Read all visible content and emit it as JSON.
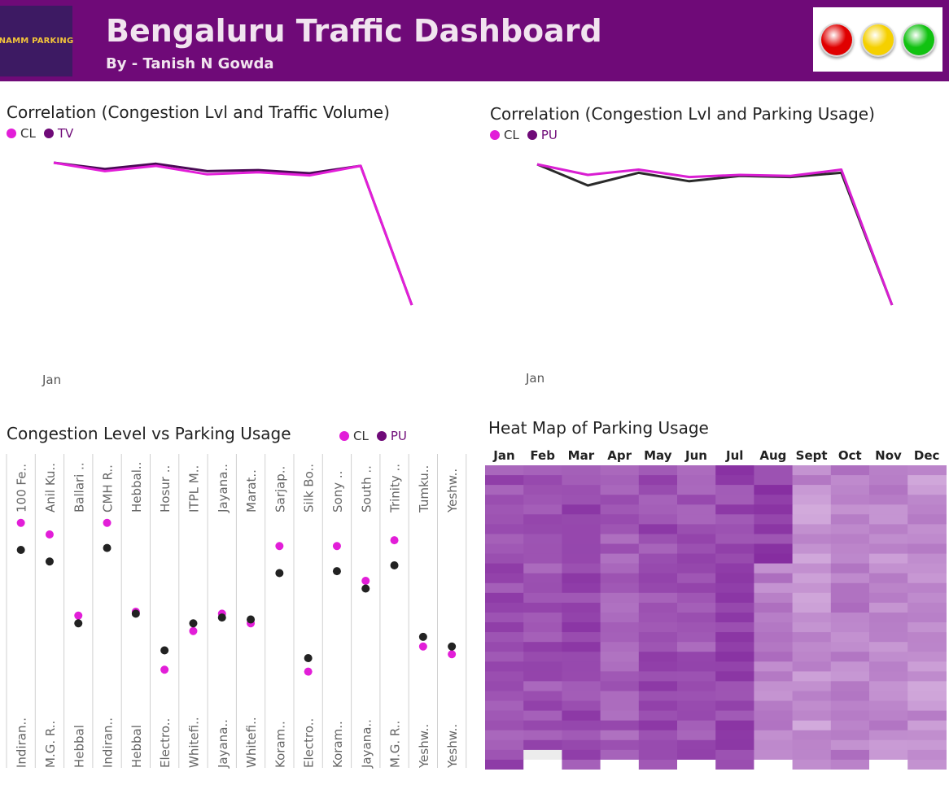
{
  "header": {
    "logo_text": "NAMM PARKING",
    "title": "Bengaluru Traffic Dashboard",
    "subtitle": "By - Tanish N Gowda",
    "lights": [
      "#e00000",
      "#f5d000",
      "#11c211"
    ]
  },
  "colors": {
    "cl": "#e21ed8",
    "tv": "#6f0a78",
    "pu": "#6f0a78",
    "pu_dot": "#222222",
    "pu_line": "#222222"
  },
  "chart_data": [
    {
      "type": "line",
      "title": "Correlation (Congestion Lvl and Traffic Volume)",
      "x_tick_label": "Jan",
      "series": [
        {
          "name": "CL",
          "values": [
            76.5,
            72.5,
            75.0,
            71.0,
            72.0,
            70.5,
            75.0,
            9.0
          ]
        },
        {
          "name": "TV",
          "values": [
            76.5,
            73.5,
            76.0,
            72.5,
            73.0,
            71.5,
            75.0,
            9.0
          ]
        }
      ]
    },
    {
      "type": "line",
      "title": "Correlation (Congestion Lvl and Parking Usage)",
      "x_tick_label": "Jan",
      "series": [
        {
          "name": "CL",
          "values": [
            76.5,
            71.5,
            74.0,
            70.5,
            71.5,
            71.0,
            74.0,
            10.0
          ]
        },
        {
          "name": "PU",
          "values": [
            76.5,
            66.5,
            72.5,
            68.5,
            71.0,
            70.5,
            72.5,
            10.0
          ]
        }
      ]
    },
    {
      "type": "scatter",
      "title": "Congestion Level vs Parking Usage",
      "columns": [
        {
          "top": "100 Fe..",
          "bottom": "Indiran..",
          "cl": 84,
          "pu": 77
        },
        {
          "top": "Anil Ku..",
          "bottom": "M.G. R..",
          "cl": 81,
          "pu": 74
        },
        {
          "top": "Ballari ..",
          "bottom": "Hebbal",
          "cl": 60,
          "pu": 58
        },
        {
          "top": "CMH R..",
          "bottom": "Indiran..",
          "cl": 84,
          "pu": 77.5
        },
        {
          "top": "Hebbal..",
          "bottom": "Hebbal",
          "cl": 61,
          "pu": 60.5
        },
        {
          "top": "Hosur ..",
          "bottom": "Electro..",
          "cl": 46,
          "pu": 51
        },
        {
          "top": "ITPL M..",
          "bottom": "Whitefi..",
          "cl": 56,
          "pu": 58
        },
        {
          "top": "Jayana..",
          "bottom": "Jayana..",
          "cl": 60.5,
          "pu": 59.5
        },
        {
          "top": "Marat..",
          "bottom": "Whitefi..",
          "cl": 58,
          "pu": 59
        },
        {
          "top": "Sarjap..",
          "bottom": "Koram..",
          "cl": 78,
          "pu": 71
        },
        {
          "top": "Silk Bo..",
          "bottom": "Electro..",
          "cl": 45.5,
          "pu": 49
        },
        {
          "top": "Sony ..",
          "bottom": "Koram..",
          "cl": 78,
          "pu": 71.5
        },
        {
          "top": "South ..",
          "bottom": "Jayana..",
          "cl": 69,
          "pu": 67
        },
        {
          "top": "Trinity ..",
          "bottom": "M.G. R..",
          "cl": 79.5,
          "pu": 73
        },
        {
          "top": "Tumku..",
          "bottom": "Yeshw..",
          "cl": 52,
          "pu": 54.5
        },
        {
          "top": "Yeshw..",
          "bottom": "Yeshw..",
          "cl": 50,
          "pu": 52
        }
      ]
    },
    {
      "type": "heatmap",
      "title": "Heat Map of Parking Usage",
      "columns": [
        "Jan",
        "Feb",
        "Mar",
        "Apr",
        "May",
        "Jun",
        "Jul",
        "Aug",
        "Sept",
        "Oct",
        "Nov",
        "Dec"
      ]
    }
  ],
  "legend": {
    "cl": "CL",
    "tv": "TV",
    "pu": "PU"
  }
}
